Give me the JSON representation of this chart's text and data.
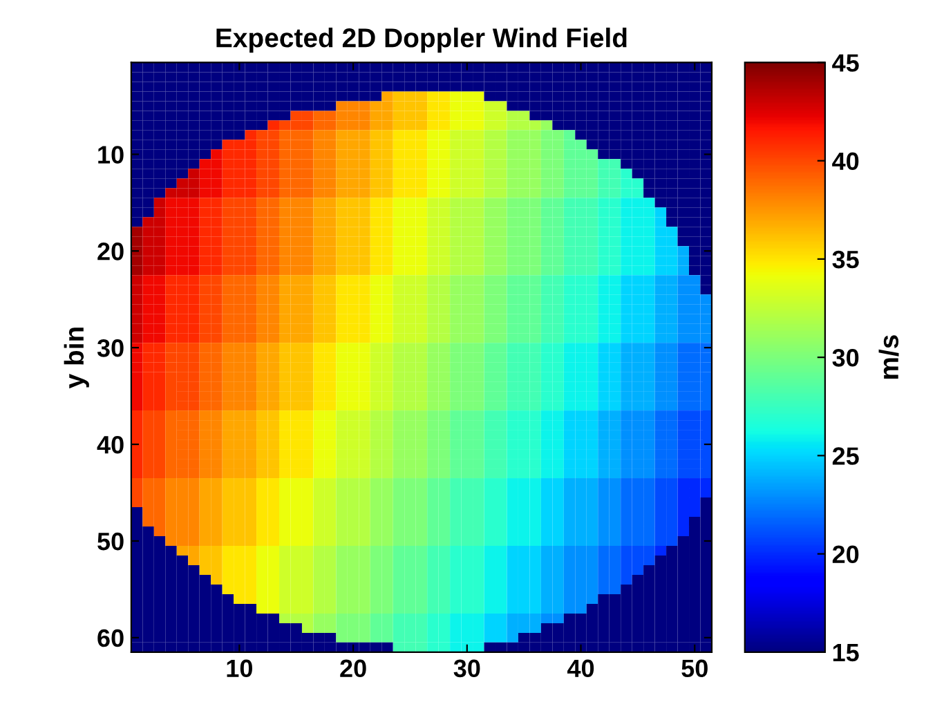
{
  "chart_data": {
    "type": "heatmap",
    "title": "Expected 2D Doppler Wind Field",
    "ylabel": "y bin",
    "clabel": "m/s",
    "x": [
      1,
      2,
      3,
      4,
      5,
      6,
      7,
      8,
      9,
      10,
      11,
      12,
      13,
      14,
      15,
      16,
      17,
      18,
      19,
      20,
      21,
      22,
      23,
      24,
      25,
      26,
      27,
      28,
      29,
      30,
      31,
      32,
      33,
      34,
      35,
      36,
      37,
      38,
      39,
      40,
      41,
      42,
      43,
      44,
      45,
      46,
      47,
      48,
      49,
      50,
      51
    ],
    "y": [
      1,
      2,
      3,
      4,
      5,
      6,
      7,
      8,
      9,
      10,
      11,
      12,
      13,
      14,
      15,
      16,
      17,
      18,
      19,
      20,
      21,
      22,
      23,
      24,
      25,
      26,
      27,
      28,
      29,
      30,
      31,
      32,
      33,
      34,
      35,
      36,
      37,
      38,
      39,
      40,
      41,
      42,
      43,
      44,
      45,
      46,
      47,
      48,
      49,
      50,
      51,
      52,
      53,
      54,
      55,
      56,
      57,
      58,
      59,
      60,
      61
    ],
    "xlim": [
      0.5,
      51.5
    ],
    "ylim": [
      61.5,
      0.5
    ],
    "xticks": [
      10,
      20,
      30,
      40,
      50
    ],
    "yticks": [
      10,
      20,
      30,
      40,
      50,
      60
    ],
    "clim": [
      15,
      45
    ],
    "cticks": [
      15,
      20,
      25,
      30,
      35,
      40,
      45
    ],
    "cells": [
      [
        15,
        15,
        15,
        15,
        15,
        15,
        15,
        15,
        15,
        15,
        15,
        15,
        15,
        15,
        15,
        15,
        15,
        15,
        15,
        15,
        15,
        15,
        15,
        15,
        15,
        15,
        15,
        15,
        15,
        15,
        15,
        15,
        15,
        15,
        15,
        15,
        15,
        15,
        15,
        15,
        15,
        15,
        15,
        15,
        15,
        15,
        15,
        15,
        15,
        15,
        15
      ],
      [
        15,
        15,
        15,
        15,
        15,
        15,
        15,
        15,
        15,
        15,
        15,
        15,
        15,
        15,
        15,
        15,
        15,
        15,
        15,
        15,
        15,
        15,
        15,
        15,
        15,
        15,
        15,
        15,
        15,
        15,
        15,
        15,
        15,
        15,
        15,
        15,
        15,
        15,
        15,
        15,
        15,
        15,
        15,
        15,
        15,
        15,
        15,
        15,
        15,
        15,
        15
      ],
      [
        15,
        15,
        15,
        15,
        15,
        15,
        15,
        15,
        15,
        15,
        15,
        15,
        15,
        15,
        15,
        15,
        15,
        15,
        15,
        15,
        15,
        15,
        15,
        15,
        15,
        15,
        15,
        15,
        15,
        15,
        15,
        15,
        15,
        15,
        15,
        15,
        15,
        15,
        15,
        15,
        15,
        15,
        15,
        15,
        15,
        15,
        15,
        15,
        15,
        15,
        15
      ],
      [
        15,
        15,
        15,
        15,
        15,
        15,
        15,
        15,
        15,
        15,
        15,
        15,
        15,
        15,
        15,
        15,
        15,
        15,
        15,
        15,
        15,
        15,
        37,
        36,
        36,
        36,
        35,
        35,
        34,
        34,
        34,
        15,
        15,
        15,
        15,
        15,
        15,
        15,
        15,
        15,
        15,
        15,
        15,
        15,
        15,
        15,
        15,
        15,
        15,
        15,
        15
      ],
      [
        15,
        15,
        15,
        15,
        15,
        15,
        15,
        15,
        15,
        15,
        15,
        15,
        15,
        15,
        15,
        15,
        15,
        15,
        38,
        38,
        38,
        37,
        37,
        36,
        36,
        36,
        35,
        35,
        34,
        34,
        34,
        33,
        33,
        15,
        15,
        15,
        15,
        15,
        15,
        15,
        15,
        15,
        15,
        15,
        15,
        15,
        15,
        15,
        15,
        15,
        15
      ],
      [
        15,
        15,
        15,
        15,
        15,
        15,
        15,
        15,
        15,
        15,
        15,
        15,
        15,
        15,
        40,
        40,
        39,
        39,
        38,
        38,
        38,
        37,
        37,
        36,
        36,
        36,
        35,
        35,
        34,
        34,
        34,
        33,
        33,
        32,
        32,
        15,
        15,
        15,
        15,
        15,
        15,
        15,
        15,
        15,
        15,
        15,
        15,
        15,
        15,
        15,
        15
      ],
      [
        15,
        15,
        15,
        15,
        15,
        15,
        15,
        15,
        15,
        15,
        15,
        15,
        41,
        40,
        40,
        40,
        39,
        39,
        38,
        38,
        38,
        37,
        37,
        36,
        36,
        36,
        35,
        35,
        34,
        34,
        34,
        33,
        33,
        32,
        32,
        32,
        31,
        15,
        15,
        15,
        15,
        15,
        15,
        15,
        15,
        15,
        15,
        15,
        15,
        15,
        15
      ],
      [
        15,
        15,
        15,
        15,
        15,
        15,
        15,
        15,
        15,
        15,
        41,
        40,
        40,
        39,
        39,
        39,
        38,
        38,
        37,
        37,
        37,
        36,
        36,
        35,
        35,
        35,
        34,
        34,
        33,
        33,
        33,
        32,
        32,
        31,
        31,
        31,
        30,
        30,
        29,
        15,
        15,
        15,
        15,
        15,
        15,
        15,
        15,
        15,
        15,
        15,
        15
      ],
      [
        15,
        15,
        15,
        15,
        15,
        15,
        15,
        15,
        41,
        41,
        41,
        40,
        40,
        39,
        39,
        39,
        38,
        38,
        37,
        37,
        37,
        36,
        36,
        35,
        35,
        35,
        34,
        34,
        33,
        33,
        33,
        32,
        32,
        31,
        31,
        31,
        30,
        30,
        29,
        29,
        15,
        15,
        15,
        15,
        15,
        15,
        15,
        15,
        15,
        15,
        15
      ],
      [
        15,
        15,
        15,
        15,
        15,
        15,
        15,
        42,
        41,
        41,
        41,
        40,
        40,
        39,
        39,
        39,
        38,
        38,
        37,
        37,
        37,
        36,
        36,
        35,
        35,
        35,
        34,
        34,
        33,
        33,
        33,
        32,
        32,
        31,
        31,
        31,
        30,
        30,
        29,
        29,
        29,
        15,
        15,
        15,
        15,
        15,
        15,
        15,
        15,
        15,
        15
      ],
      [
        15,
        15,
        15,
        15,
        15,
        15,
        42,
        42,
        41,
        41,
        41,
        40,
        40,
        39,
        39,
        39,
        38,
        38,
        37,
        37,
        37,
        36,
        36,
        35,
        35,
        35,
        34,
        34,
        33,
        33,
        33,
        32,
        32,
        31,
        31,
        31,
        30,
        30,
        29,
        29,
        29,
        28,
        28,
        15,
        15,
        15,
        15,
        15,
        15,
        15,
        15
      ],
      [
        15,
        15,
        15,
        15,
        15,
        43,
        42,
        42,
        41,
        41,
        41,
        40,
        40,
        39,
        39,
        39,
        38,
        38,
        37,
        37,
        37,
        36,
        36,
        35,
        35,
        35,
        34,
        34,
        33,
        33,
        33,
        32,
        32,
        31,
        31,
        31,
        30,
        30,
        29,
        29,
        29,
        28,
        28,
        27,
        15,
        15,
        15,
        15,
        15,
        15,
        15
      ],
      [
        15,
        15,
        15,
        15,
        43,
        43,
        42,
        42,
        41,
        41,
        41,
        40,
        40,
        39,
        39,
        39,
        38,
        38,
        37,
        37,
        37,
        36,
        36,
        35,
        35,
        35,
        34,
        34,
        33,
        33,
        33,
        32,
        32,
        31,
        31,
        31,
        30,
        30,
        29,
        29,
        29,
        28,
        28,
        27,
        27,
        15,
        15,
        15,
        15,
        15,
        15
      ],
      [
        15,
        15,
        15,
        43,
        43,
        43,
        42,
        42,
        41,
        41,
        41,
        40,
        40,
        39,
        39,
        39,
        38,
        38,
        37,
        37,
        37,
        36,
        36,
        35,
        35,
        35,
        34,
        34,
        33,
        33,
        33,
        32,
        32,
        31,
        31,
        31,
        30,
        30,
        29,
        29,
        29,
        28,
        28,
        27,
        27,
        15,
        15,
        15,
        15,
        15,
        15
      ],
      [
        15,
        15,
        43,
        42,
        42,
        42,
        41,
        41,
        40,
        40,
        40,
        39,
        39,
        38,
        38,
        38,
        37,
        37,
        36,
        36,
        36,
        35,
        35,
        34,
        34,
        34,
        33,
        33,
        32,
        32,
        32,
        31,
        31,
        30,
        30,
        30,
        29,
        29,
        28,
        28,
        28,
        27,
        27,
        26,
        26,
        26,
        15,
        15,
        15,
        15,
        15
      ],
      [
        15,
        15,
        43,
        42,
        42,
        42,
        41,
        41,
        40,
        40,
        40,
        39,
        39,
        38,
        38,
        38,
        37,
        37,
        36,
        36,
        36,
        35,
        35,
        34,
        34,
        34,
        33,
        33,
        32,
        32,
        32,
        31,
        31,
        30,
        30,
        30,
        29,
        29,
        28,
        28,
        28,
        27,
        27,
        26,
        26,
        26,
        25,
        15,
        15,
        15,
        15
      ],
      [
        15,
        43,
        43,
        42,
        42,
        42,
        41,
        41,
        40,
        40,
        40,
        39,
        39,
        38,
        38,
        38,
        37,
        37,
        36,
        36,
        36,
        35,
        35,
        34,
        34,
        34,
        33,
        33,
        32,
        32,
        32,
        31,
        31,
        30,
        30,
        30,
        29,
        29,
        28,
        28,
        28,
        27,
        27,
        26,
        26,
        26,
        25,
        15,
        15,
        15,
        15
      ],
      [
        44,
        43,
        43,
        42,
        42,
        42,
        41,
        41,
        40,
        40,
        40,
        39,
        39,
        38,
        38,
        38,
        37,
        37,
        36,
        36,
        36,
        35,
        35,
        34,
        34,
        34,
        33,
        33,
        32,
        32,
        32,
        31,
        31,
        30,
        30,
        30,
        29,
        29,
        28,
        28,
        28,
        27,
        27,
        26,
        26,
        26,
        25,
        25,
        15,
        15,
        15
      ],
      [
        44,
        43,
        43,
        42,
        42,
        42,
        41,
        41,
        40,
        40,
        40,
        39,
        39,
        38,
        38,
        38,
        37,
        37,
        36,
        36,
        36,
        35,
        35,
        34,
        34,
        34,
        33,
        33,
        32,
        32,
        32,
        31,
        31,
        30,
        30,
        30,
        29,
        29,
        28,
        28,
        28,
        27,
        27,
        26,
        26,
        26,
        25,
        25,
        15,
        15,
        15
      ],
      [
        44,
        43,
        43,
        42,
        42,
        42,
        41,
        41,
        40,
        40,
        40,
        39,
        39,
        38,
        38,
        38,
        37,
        37,
        36,
        36,
        36,
        35,
        35,
        34,
        34,
        34,
        33,
        33,
        32,
        32,
        32,
        31,
        31,
        30,
        30,
        30,
        29,
        29,
        28,
        28,
        28,
        27,
        27,
        26,
        26,
        26,
        25,
        25,
        24,
        15,
        15
      ],
      [
        44,
        43,
        43,
        42,
        42,
        42,
        41,
        41,
        40,
        40,
        40,
        39,
        39,
        38,
        38,
        38,
        37,
        37,
        36,
        36,
        36,
        35,
        35,
        34,
        34,
        34,
        33,
        33,
        32,
        32,
        32,
        31,
        31,
        30,
        30,
        30,
        29,
        29,
        28,
        28,
        28,
        27,
        27,
        26,
        26,
        26,
        25,
        25,
        24,
        15,
        15
      ],
      [
        44,
        43,
        43,
        42,
        42,
        42,
        41,
        41,
        40,
        40,
        40,
        39,
        39,
        38,
        38,
        38,
        37,
        37,
        36,
        36,
        36,
        35,
        35,
        34,
        34,
        34,
        33,
        33,
        32,
        32,
        32,
        31,
        31,
        30,
        30,
        30,
        29,
        29,
        28,
        28,
        28,
        27,
        27,
        26,
        26,
        26,
        25,
        25,
        24,
        15,
        15
      ],
      [
        43,
        42,
        42,
        41,
        41,
        41,
        40,
        40,
        39,
        39,
        39,
        38,
        38,
        37,
        37,
        37,
        36,
        36,
        35,
        35,
        35,
        34,
        34,
        33,
        33,
        33,
        32,
        32,
        31,
        31,
        31,
        30,
        30,
        29,
        29,
        29,
        28,
        28,
        27,
        27,
        27,
        26,
        26,
        25,
        25,
        25,
        24,
        24,
        23,
        23,
        15
      ],
      [
        43,
        42,
        42,
        41,
        41,
        41,
        40,
        40,
        39,
        39,
        39,
        38,
        38,
        37,
        37,
        37,
        36,
        36,
        35,
        35,
        35,
        34,
        34,
        33,
        33,
        33,
        32,
        32,
        31,
        31,
        31,
        30,
        30,
        29,
        29,
        29,
        28,
        28,
        27,
        27,
        27,
        26,
        26,
        25,
        25,
        25,
        24,
        24,
        23,
        23,
        15
      ],
      [
        43,
        42,
        42,
        41,
        41,
        41,
        40,
        40,
        39,
        39,
        39,
        38,
        38,
        37,
        37,
        37,
        36,
        36,
        35,
        35,
        35,
        34,
        34,
        33,
        33,
        33,
        32,
        32,
        31,
        31,
        31,
        30,
        30,
        29,
        29,
        29,
        28,
        28,
        27,
        27,
        27,
        26,
        26,
        25,
        25,
        25,
        24,
        24,
        23,
        23,
        23
      ],
      [
        43,
        42,
        42,
        41,
        41,
        41,
        40,
        40,
        39,
        39,
        39,
        38,
        38,
        37,
        37,
        37,
        36,
        36,
        35,
        35,
        35,
        34,
        34,
        33,
        33,
        33,
        32,
        32,
        31,
        31,
        31,
        30,
        30,
        29,
        29,
        29,
        28,
        28,
        27,
        27,
        27,
        26,
        26,
        25,
        25,
        25,
        24,
        24,
        23,
        23,
        23
      ],
      [
        43,
        42,
        42,
        41,
        41,
        41,
        40,
        40,
        39,
        39,
        39,
        38,
        38,
        37,
        37,
        37,
        36,
        36,
        35,
        35,
        35,
        34,
        34,
        33,
        33,
        33,
        32,
        32,
        31,
        31,
        31,
        30,
        30,
        29,
        29,
        29,
        28,
        28,
        27,
        27,
        27,
        26,
        26,
        25,
        25,
        25,
        24,
        24,
        23,
        23,
        23
      ],
      [
        43,
        42,
        42,
        41,
        41,
        41,
        40,
        40,
        39,
        39,
        39,
        38,
        38,
        37,
        37,
        37,
        36,
        36,
        35,
        35,
        35,
        34,
        34,
        33,
        33,
        33,
        32,
        32,
        31,
        31,
        31,
        30,
        30,
        29,
        29,
        29,
        28,
        28,
        27,
        27,
        27,
        26,
        26,
        25,
        25,
        25,
        24,
        24,
        23,
        23,
        23
      ],
      [
        43,
        42,
        42,
        41,
        41,
        41,
        40,
        40,
        39,
        39,
        39,
        38,
        38,
        37,
        37,
        37,
        36,
        36,
        35,
        35,
        35,
        34,
        34,
        33,
        33,
        33,
        32,
        32,
        31,
        31,
        31,
        30,
        30,
        29,
        29,
        29,
        28,
        28,
        27,
        27,
        27,
        26,
        26,
        25,
        25,
        25,
        24,
        24,
        23,
        23,
        23
      ],
      [
        42,
        41,
        41,
        40,
        40,
        40,
        39,
        39,
        38,
        38,
        38,
        37,
        37,
        36,
        36,
        36,
        35,
        35,
        34,
        34,
        34,
        33,
        33,
        32,
        32,
        32,
        31,
        31,
        30,
        30,
        30,
        29,
        29,
        28,
        28,
        28,
        27,
        27,
        26,
        26,
        26,
        25,
        25,
        24,
        24,
        24,
        23,
        23,
        22,
        22,
        22
      ],
      [
        42,
        41,
        41,
        40,
        40,
        40,
        39,
        39,
        38,
        38,
        38,
        37,
        37,
        36,
        36,
        36,
        35,
        35,
        34,
        34,
        34,
        33,
        33,
        32,
        32,
        32,
        31,
        31,
        30,
        30,
        30,
        29,
        29,
        28,
        28,
        28,
        27,
        27,
        26,
        26,
        26,
        25,
        25,
        24,
        24,
        24,
        23,
        23,
        22,
        22,
        22
      ],
      [
        42,
        41,
        41,
        40,
        40,
        40,
        39,
        39,
        38,
        38,
        38,
        37,
        37,
        36,
        36,
        36,
        35,
        35,
        34,
        34,
        34,
        33,
        33,
        32,
        32,
        32,
        31,
        31,
        30,
        30,
        30,
        29,
        29,
        28,
        28,
        28,
        27,
        27,
        26,
        26,
        26,
        25,
        25,
        24,
        24,
        24,
        23,
        23,
        22,
        22,
        22
      ],
      [
        42,
        41,
        41,
        40,
        40,
        40,
        39,
        39,
        38,
        38,
        38,
        37,
        37,
        36,
        36,
        36,
        35,
        35,
        34,
        34,
        34,
        33,
        33,
        32,
        32,
        32,
        31,
        31,
        30,
        30,
        30,
        29,
        29,
        28,
        28,
        28,
        27,
        27,
        26,
        26,
        26,
        25,
        25,
        24,
        24,
        24,
        23,
        23,
        22,
        22,
        22
      ],
      [
        42,
        41,
        41,
        40,
        40,
        40,
        39,
        39,
        38,
        38,
        38,
        37,
        37,
        36,
        36,
        36,
        35,
        35,
        34,
        34,
        34,
        33,
        33,
        32,
        32,
        32,
        31,
        31,
        30,
        30,
        30,
        29,
        29,
        28,
        28,
        28,
        27,
        27,
        26,
        26,
        26,
        25,
        25,
        24,
        24,
        24,
        23,
        23,
        22,
        22,
        22
      ],
      [
        42,
        41,
        41,
        40,
        40,
        40,
        39,
        39,
        38,
        38,
        38,
        37,
        37,
        36,
        36,
        36,
        35,
        35,
        34,
        34,
        34,
        33,
        33,
        32,
        32,
        32,
        31,
        31,
        30,
        30,
        30,
        29,
        29,
        28,
        28,
        28,
        27,
        27,
        26,
        26,
        26,
        25,
        25,
        24,
        24,
        24,
        23,
        23,
        22,
        22,
        22
      ],
      [
        42,
        41,
        41,
        40,
        40,
        40,
        39,
        39,
        38,
        38,
        38,
        37,
        37,
        36,
        36,
        36,
        35,
        35,
        34,
        34,
        34,
        33,
        33,
        32,
        32,
        32,
        31,
        31,
        30,
        30,
        30,
        29,
        29,
        28,
        28,
        28,
        27,
        27,
        26,
        26,
        26,
        25,
        25,
        24,
        24,
        24,
        23,
        23,
        22,
        22,
        22
      ],
      [
        41,
        40,
        40,
        39,
        39,
        39,
        38,
        38,
        37,
        37,
        37,
        36,
        36,
        35,
        35,
        35,
        34,
        34,
        33,
        33,
        33,
        32,
        32,
        31,
        31,
        31,
        30,
        30,
        29,
        29,
        29,
        28,
        28,
        27,
        27,
        27,
        26,
        26,
        25,
        25,
        25,
        24,
        24,
        23,
        23,
        23,
        22,
        22,
        21,
        21,
        21
      ],
      [
        41,
        40,
        40,
        39,
        39,
        39,
        38,
        38,
        37,
        37,
        37,
        36,
        36,
        35,
        35,
        35,
        34,
        34,
        33,
        33,
        33,
        32,
        32,
        31,
        31,
        31,
        30,
        30,
        29,
        29,
        29,
        28,
        28,
        27,
        27,
        27,
        26,
        26,
        25,
        25,
        25,
        24,
        24,
        23,
        23,
        23,
        22,
        22,
        21,
        21,
        21
      ],
      [
        41,
        40,
        40,
        39,
        39,
        39,
        38,
        38,
        37,
        37,
        37,
        36,
        36,
        35,
        35,
        35,
        34,
        34,
        33,
        33,
        33,
        32,
        32,
        31,
        31,
        31,
        30,
        30,
        29,
        29,
        29,
        28,
        28,
        27,
        27,
        27,
        26,
        26,
        25,
        25,
        25,
        24,
        24,
        23,
        23,
        23,
        22,
        22,
        21,
        21,
        21
      ],
      [
        41,
        40,
        40,
        39,
        39,
        39,
        38,
        38,
        37,
        37,
        37,
        36,
        36,
        35,
        35,
        35,
        34,
        34,
        33,
        33,
        33,
        32,
        32,
        31,
        31,
        31,
        30,
        30,
        29,
        29,
        29,
        28,
        28,
        27,
        27,
        27,
        26,
        26,
        25,
        25,
        25,
        24,
        24,
        23,
        23,
        23,
        22,
        22,
        21,
        21,
        21
      ],
      [
        41,
        40,
        40,
        39,
        39,
        39,
        38,
        38,
        37,
        37,
        37,
        36,
        36,
        35,
        35,
        35,
        34,
        34,
        33,
        33,
        33,
        32,
        32,
        31,
        31,
        31,
        30,
        30,
        29,
        29,
        29,
        28,
        28,
        27,
        27,
        27,
        26,
        26,
        25,
        25,
        25,
        24,
        24,
        23,
        23,
        23,
        22,
        22,
        21,
        21,
        21
      ],
      [
        41,
        40,
        40,
        39,
        39,
        39,
        38,
        38,
        37,
        37,
        37,
        36,
        36,
        35,
        35,
        35,
        34,
        34,
        33,
        33,
        33,
        32,
        32,
        31,
        31,
        31,
        30,
        30,
        29,
        29,
        29,
        28,
        28,
        27,
        27,
        27,
        26,
        26,
        25,
        25,
        25,
        24,
        24,
        23,
        23,
        23,
        22,
        22,
        21,
        21,
        21
      ],
      [
        41,
        40,
        40,
        39,
        39,
        39,
        38,
        38,
        37,
        37,
        37,
        36,
        36,
        35,
        35,
        35,
        34,
        34,
        33,
        33,
        33,
        32,
        32,
        31,
        31,
        31,
        30,
        30,
        29,
        29,
        29,
        28,
        28,
        27,
        27,
        27,
        26,
        26,
        25,
        25,
        25,
        24,
        24,
        23,
        23,
        23,
        22,
        22,
        21,
        21,
        21
      ],
      [
        40,
        39,
        39,
        38,
        38,
        38,
        37,
        37,
        36,
        36,
        36,
        35,
        35,
        34,
        34,
        34,
        33,
        33,
        32,
        32,
        32,
        31,
        31,
        30,
        30,
        30,
        29,
        29,
        28,
        28,
        28,
        27,
        27,
        26,
        26,
        26,
        25,
        25,
        24,
        24,
        24,
        23,
        23,
        22,
        22,
        22,
        21,
        21,
        20,
        20,
        20
      ],
      [
        40,
        39,
        39,
        38,
        38,
        38,
        37,
        37,
        36,
        36,
        36,
        35,
        35,
        34,
        34,
        34,
        33,
        33,
        32,
        32,
        32,
        31,
        31,
        30,
        30,
        30,
        29,
        29,
        28,
        28,
        28,
        27,
        27,
        26,
        26,
        26,
        25,
        25,
        24,
        24,
        24,
        23,
        23,
        22,
        22,
        22,
        21,
        21,
        20,
        20,
        20
      ],
      [
        40,
        39,
        39,
        38,
        38,
        38,
        37,
        37,
        36,
        36,
        36,
        35,
        35,
        34,
        34,
        34,
        33,
        33,
        32,
        32,
        32,
        31,
        31,
        30,
        30,
        30,
        29,
        29,
        28,
        28,
        28,
        27,
        27,
        26,
        26,
        26,
        25,
        25,
        24,
        24,
        24,
        23,
        23,
        22,
        22,
        22,
        21,
        21,
        20,
        20,
        15
      ],
      [
        15,
        39,
        39,
        38,
        38,
        38,
        37,
        37,
        36,
        36,
        36,
        35,
        35,
        34,
        34,
        34,
        33,
        33,
        32,
        32,
        32,
        31,
        31,
        30,
        30,
        30,
        29,
        29,
        28,
        28,
        28,
        27,
        27,
        26,
        26,
        26,
        25,
        25,
        24,
        24,
        24,
        23,
        23,
        22,
        22,
        22,
        21,
        21,
        20,
        20,
        15
      ],
      [
        15,
        39,
        39,
        38,
        38,
        38,
        37,
        37,
        36,
        36,
        36,
        35,
        35,
        34,
        34,
        34,
        33,
        33,
        32,
        32,
        32,
        31,
        31,
        30,
        30,
        30,
        29,
        29,
        28,
        28,
        28,
        27,
        27,
        26,
        26,
        26,
        25,
        25,
        24,
        24,
        24,
        23,
        23,
        22,
        22,
        22,
        21,
        21,
        20,
        15,
        15
      ],
      [
        15,
        15,
        39,
        38,
        38,
        38,
        37,
        37,
        36,
        36,
        36,
        35,
        35,
        34,
        34,
        34,
        33,
        33,
        32,
        32,
        32,
        31,
        31,
        30,
        30,
        30,
        29,
        29,
        28,
        28,
        28,
        27,
        27,
        26,
        26,
        26,
        25,
        25,
        24,
        24,
        24,
        23,
        23,
        22,
        22,
        22,
        21,
        21,
        20,
        15,
        15
      ],
      [
        15,
        15,
        15,
        38,
        38,
        38,
        37,
        37,
        36,
        36,
        36,
        35,
        35,
        34,
        34,
        34,
        33,
        33,
        32,
        32,
        32,
        31,
        31,
        30,
        30,
        30,
        29,
        29,
        28,
        28,
        28,
        27,
        27,
        26,
        26,
        26,
        25,
        25,
        24,
        24,
        24,
        23,
        23,
        22,
        22,
        22,
        21,
        21,
        15,
        15,
        15
      ],
      [
        15,
        15,
        15,
        15,
        37,
        37,
        36,
        36,
        35,
        35,
        35,
        34,
        34,
        33,
        33,
        33,
        32,
        32,
        31,
        31,
        31,
        30,
        30,
        29,
        29,
        29,
        28,
        28,
        27,
        27,
        27,
        26,
        26,
        25,
        25,
        25,
        24,
        24,
        23,
        23,
        23,
        22,
        22,
        21,
        21,
        21,
        20,
        15,
        15,
        15,
        15
      ],
      [
        15,
        15,
        15,
        15,
        15,
        37,
        36,
        36,
        35,
        35,
        35,
        34,
        34,
        33,
        33,
        33,
        32,
        32,
        31,
        31,
        31,
        30,
        30,
        29,
        29,
        29,
        28,
        28,
        27,
        27,
        27,
        26,
        26,
        25,
        25,
        25,
        24,
        24,
        23,
        23,
        23,
        22,
        22,
        21,
        21,
        21,
        15,
        15,
        15,
        15,
        15
      ],
      [
        15,
        15,
        15,
        15,
        15,
        15,
        36,
        36,
        35,
        35,
        35,
        34,
        34,
        33,
        33,
        33,
        32,
        32,
        31,
        31,
        31,
        30,
        30,
        29,
        29,
        29,
        28,
        28,
        27,
        27,
        27,
        26,
        26,
        25,
        25,
        25,
        24,
        24,
        23,
        23,
        23,
        22,
        22,
        21,
        21,
        15,
        15,
        15,
        15,
        15,
        15
      ],
      [
        15,
        15,
        15,
        15,
        15,
        15,
        15,
        36,
        35,
        35,
        35,
        34,
        34,
        33,
        33,
        33,
        32,
        32,
        31,
        31,
        31,
        30,
        30,
        29,
        29,
        29,
        28,
        28,
        27,
        27,
        27,
        26,
        26,
        25,
        25,
        25,
        24,
        24,
        23,
        23,
        23,
        22,
        22,
        21,
        15,
        15,
        15,
        15,
        15,
        15,
        15
      ],
      [
        15,
        15,
        15,
        15,
        15,
        15,
        15,
        15,
        35,
        35,
        35,
        34,
        34,
        33,
        33,
        33,
        32,
        32,
        31,
        31,
        31,
        30,
        30,
        29,
        29,
        29,
        28,
        28,
        27,
        27,
        27,
        26,
        26,
        25,
        25,
        25,
        24,
        24,
        23,
        23,
        23,
        22,
        22,
        15,
        15,
        15,
        15,
        15,
        15,
        15,
        15
      ],
      [
        15,
        15,
        15,
        15,
        15,
        15,
        15,
        15,
        15,
        35,
        35,
        34,
        34,
        33,
        33,
        33,
        32,
        32,
        31,
        31,
        31,
        30,
        30,
        29,
        29,
        29,
        28,
        28,
        27,
        27,
        27,
        26,
        26,
        25,
        25,
        25,
        24,
        24,
        23,
        23,
        23,
        15,
        15,
        15,
        15,
        15,
        15,
        15,
        15,
        15,
        15
      ],
      [
        15,
        15,
        15,
        15,
        15,
        15,
        15,
        15,
        15,
        15,
        15,
        34,
        34,
        33,
        33,
        33,
        32,
        32,
        31,
        31,
        31,
        30,
        30,
        29,
        29,
        29,
        28,
        28,
        27,
        27,
        27,
        26,
        26,
        25,
        25,
        25,
        24,
        24,
        23,
        23,
        15,
        15,
        15,
        15,
        15,
        15,
        15,
        15,
        15,
        15,
        15
      ],
      [
        15,
        15,
        15,
        15,
        15,
        15,
        15,
        15,
        15,
        15,
        15,
        15,
        15,
        32,
        32,
        32,
        31,
        31,
        30,
        30,
        30,
        29,
        29,
        28,
        28,
        28,
        27,
        27,
        26,
        26,
        26,
        25,
        25,
        24,
        24,
        24,
        23,
        23,
        15,
        15,
        15,
        15,
        15,
        15,
        15,
        15,
        15,
        15,
        15,
        15,
        15
      ],
      [
        15,
        15,
        15,
        15,
        15,
        15,
        15,
        15,
        15,
        15,
        15,
        15,
        15,
        15,
        15,
        32,
        31,
        31,
        30,
        30,
        30,
        29,
        29,
        28,
        28,
        28,
        27,
        27,
        26,
        26,
        26,
        25,
        25,
        24,
        24,
        24,
        15,
        15,
        15,
        15,
        15,
        15,
        15,
        15,
        15,
        15,
        15,
        15,
        15,
        15,
        15
      ],
      [
        15,
        15,
        15,
        15,
        15,
        15,
        15,
        15,
        15,
        15,
        15,
        15,
        15,
        15,
        15,
        15,
        15,
        15,
        30,
        30,
        30,
        29,
        29,
        28,
        28,
        28,
        27,
        27,
        26,
        26,
        26,
        25,
        25,
        24,
        15,
        15,
        15,
        15,
        15,
        15,
        15,
        15,
        15,
        15,
        15,
        15,
        15,
        15,
        15,
        15,
        15
      ],
      [
        15,
        15,
        15,
        15,
        15,
        15,
        15,
        15,
        15,
        15,
        15,
        15,
        15,
        15,
        15,
        15,
        15,
        15,
        15,
        15,
        15,
        15,
        15,
        28,
        28,
        28,
        27,
        27,
        26,
        26,
        26,
        15,
        15,
        15,
        15,
        15,
        15,
        15,
        15,
        15,
        15,
        15,
        15,
        15,
        15,
        15,
        15,
        15,
        15,
        15,
        15
      ]
    ]
  }
}
